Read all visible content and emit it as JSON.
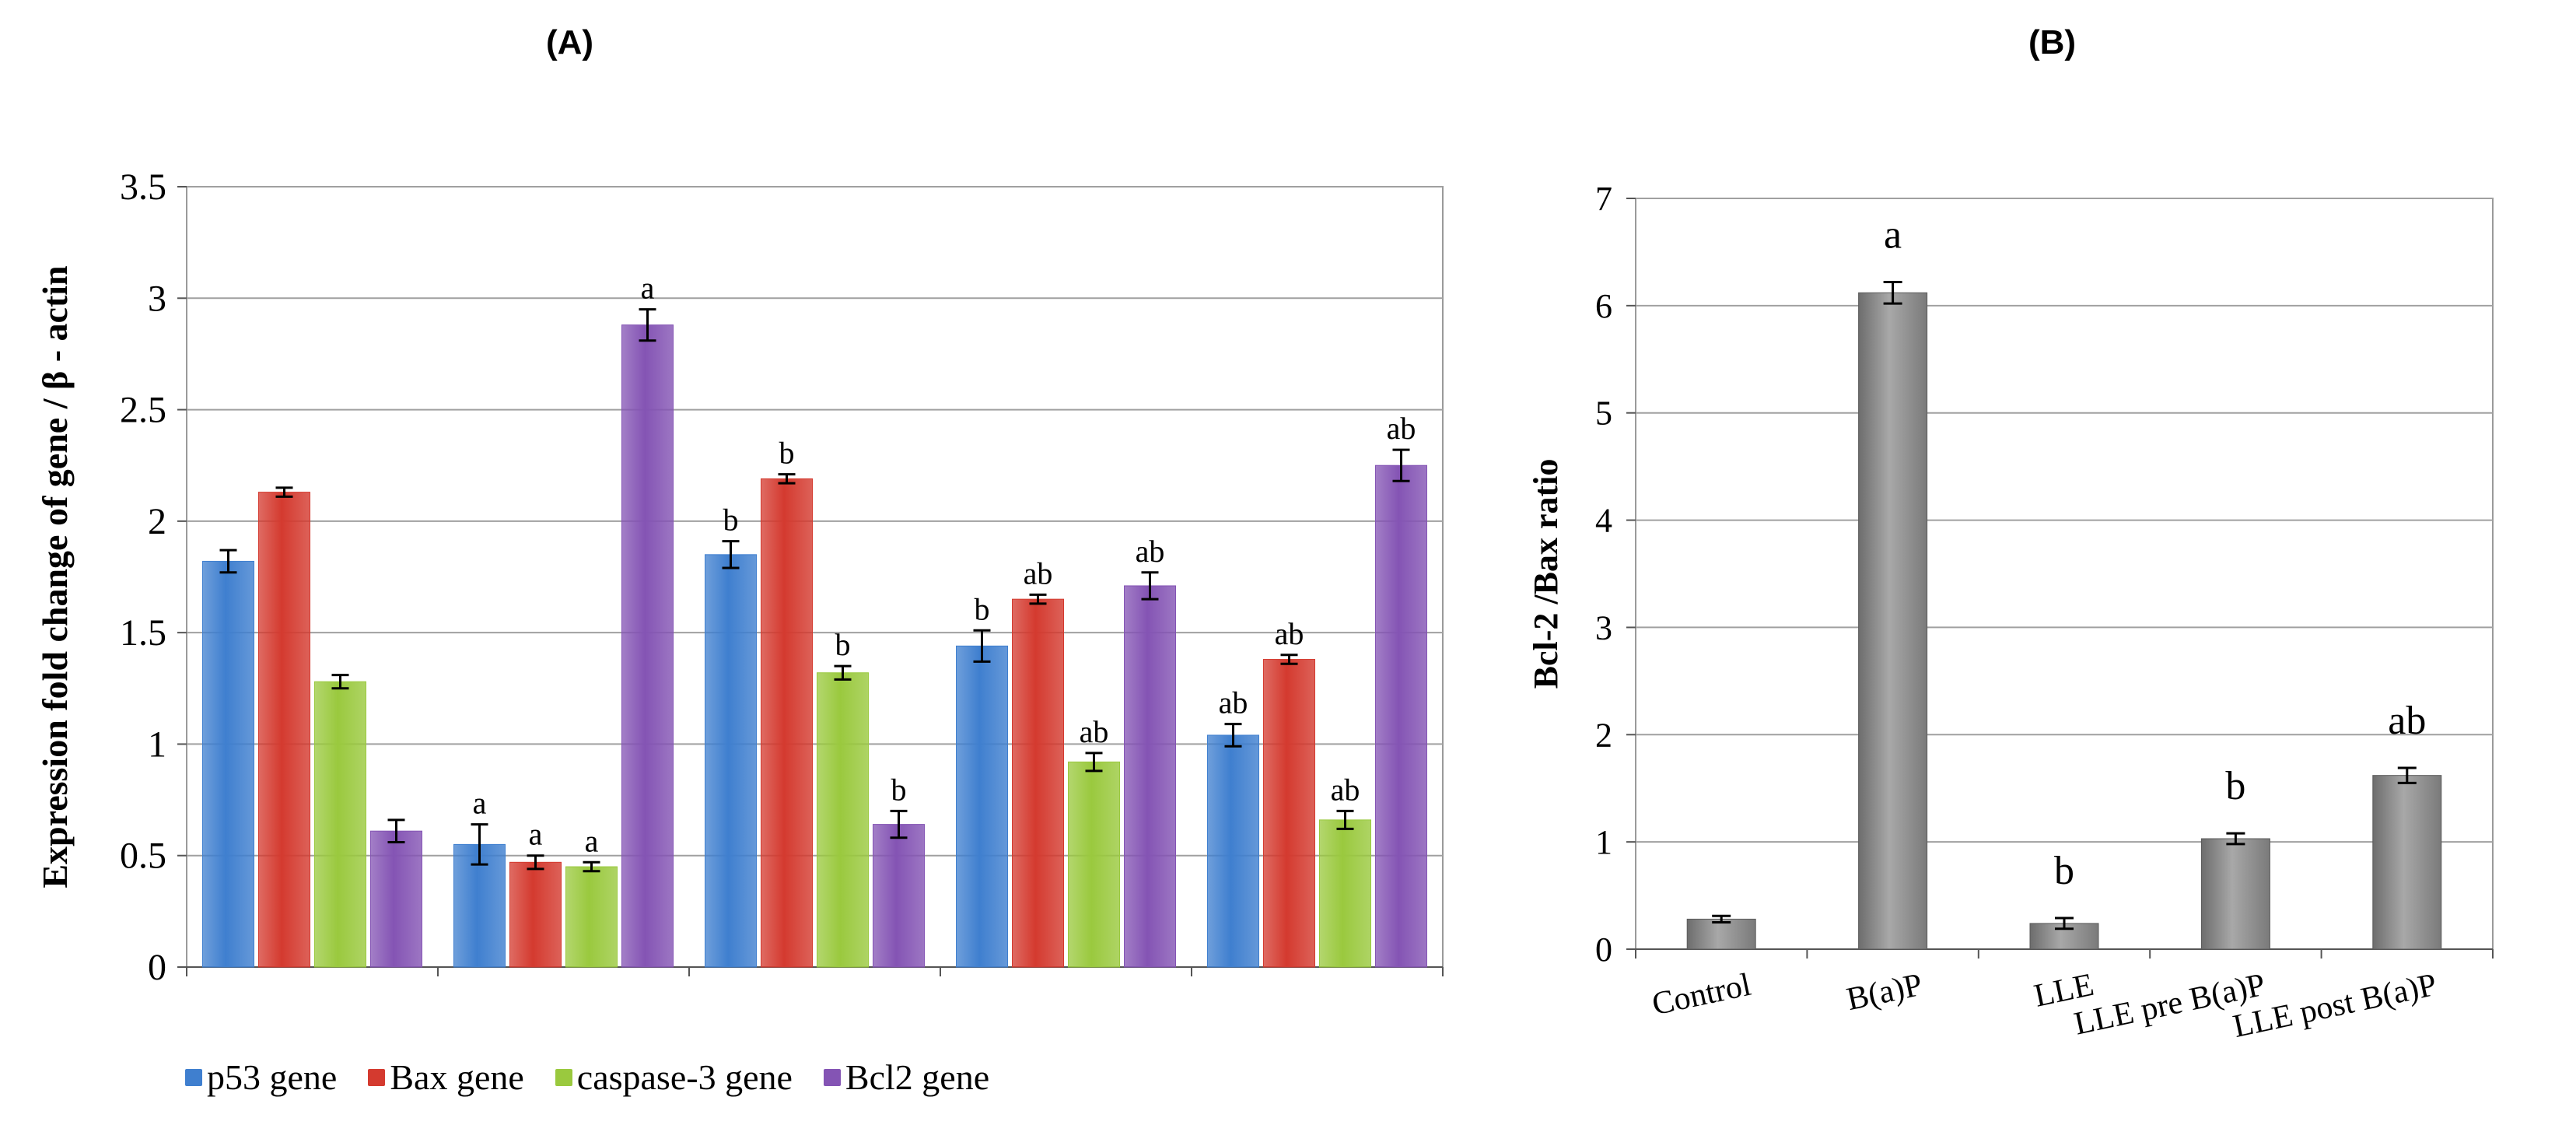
{
  "panel_a_title": "(A)",
  "panel_b_title": "(B)",
  "chart_data": [
    {
      "type": "bar",
      "title": "(A)",
      "xlabel": "",
      "ylabel": "Expression fold change of gene / β - actin",
      "ylim": [
        0,
        3.5
      ],
      "yticks": [
        "0",
        "0.5",
        "1",
        "1.5",
        "2",
        "2.5",
        "3",
        "3.5"
      ],
      "grid": true,
      "categories": [
        "",
        "",
        "",
        "",
        ""
      ],
      "series": [
        {
          "name": "p53 gene",
          "color": "#3f7fcf",
          "values": [
            1.82,
            0.55,
            1.85,
            1.44,
            1.04
          ],
          "errors": [
            0.05,
            0.09,
            0.06,
            0.07,
            0.05
          ],
          "labels": [
            "",
            "a",
            "b",
            "b",
            "ab"
          ]
        },
        {
          "name": "Bax gene",
          "color": "#d43a2f",
          "values": [
            2.13,
            0.47,
            2.19,
            1.65,
            1.38
          ],
          "errors": [
            0.02,
            0.03,
            0.02,
            0.02,
            0.02
          ],
          "labels": [
            "",
            "a",
            "b",
            "ab",
            "ab"
          ]
        },
        {
          "name": "caspase-3 gene",
          "color": "#9ac93e",
          "values": [
            1.28,
            0.45,
            1.32,
            0.92,
            0.66
          ],
          "errors": [
            0.03,
            0.02,
            0.03,
            0.04,
            0.04
          ],
          "labels": [
            "",
            "a",
            "b",
            "ab",
            "ab"
          ]
        },
        {
          "name": "Bcl2 gene",
          "color": "#8454b4",
          "values": [
            0.61,
            2.88,
            0.64,
            1.71,
            2.25
          ],
          "errors": [
            0.05,
            0.07,
            0.06,
            0.06,
            0.07
          ],
          "labels": [
            "",
            "a",
            "b",
            "ab",
            "ab"
          ]
        }
      ],
      "legend_position": "bottom"
    },
    {
      "type": "bar",
      "title": "(B)",
      "xlabel": "",
      "ylabel": "Bcl-2 /Bax ratio",
      "ylim": [
        0,
        7
      ],
      "yticks": [
        "0",
        "1",
        "2",
        "3",
        "4",
        "5",
        "6",
        "7"
      ],
      "grid": true,
      "categories": [
        "Control",
        "B(a)P",
        "LLE",
        "LLE pre B(a)P",
        "LLE post B(a)P"
      ],
      "values": [
        0.28,
        6.12,
        0.24,
        1.03,
        1.62
      ],
      "errors": [
        0.03,
        0.1,
        0.05,
        0.05,
        0.07
      ],
      "labels": [
        "",
        "a",
        "b",
        "b",
        "ab"
      ],
      "color": "#8c8c8c"
    }
  ]
}
